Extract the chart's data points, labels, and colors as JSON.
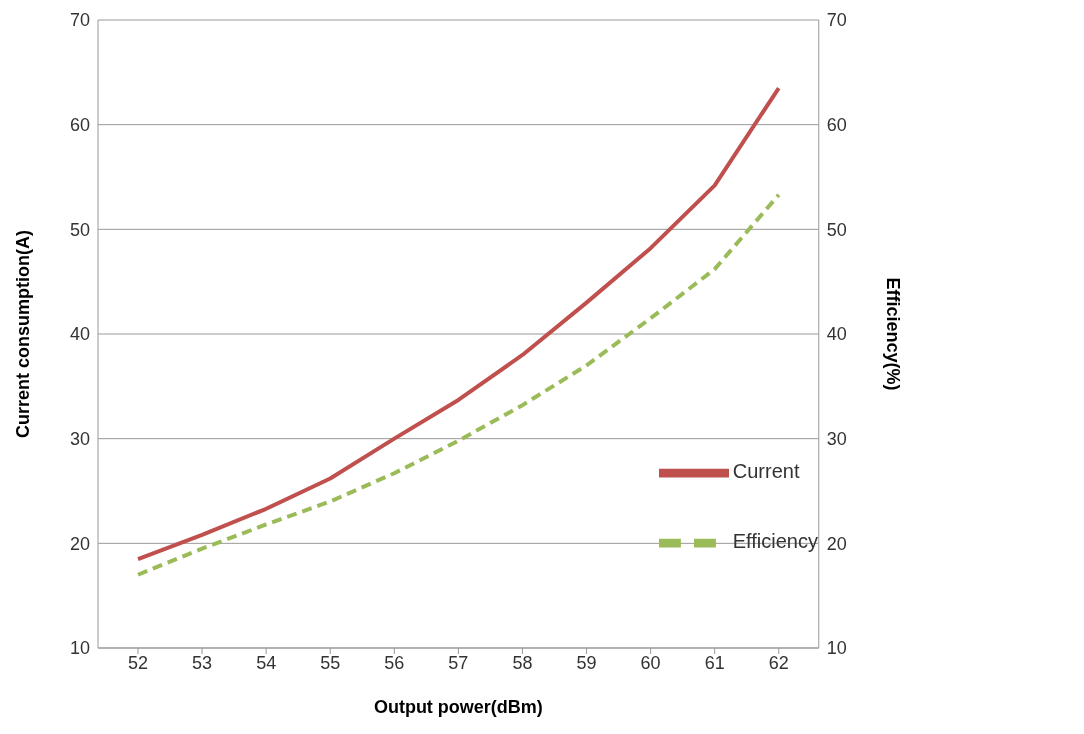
{
  "chart_data": {
    "type": "line",
    "xlabel": "Output power(dBm)",
    "ylabel": "Current consumption(A)",
    "y2label": "Efficiency(%)",
    "categories": [
      "52",
      "53",
      "54",
      "55",
      "56",
      "57",
      "58",
      "59",
      "60",
      "61",
      "62"
    ],
    "series": [
      {
        "name": "Current",
        "color": "#c0504d",
        "line_style": "solid",
        "values": [
          18.5,
          20.8,
          23.3,
          26.2,
          30,
          33.7,
          38,
          43,
          48.2,
          54.2,
          63.5
        ]
      },
      {
        "name": "Efficiency",
        "color": "#9bbb59",
        "line_style": "dashed",
        "axis": "y2",
        "values": [
          17,
          19.5,
          21.8,
          24,
          26.7,
          29.8,
          33.2,
          37,
          41.5,
          46.2,
          53.3
        ]
      }
    ],
    "ylim": [
      10,
      70
    ],
    "yticks": [
      10,
      20,
      30,
      40,
      50,
      60,
      70
    ],
    "y2lim": [
      10,
      70
    ],
    "y2ticks": [
      10,
      20,
      30,
      40,
      50,
      60,
      70
    ],
    "grid": "y",
    "legend": "bottom right",
    "marker": "none"
  }
}
